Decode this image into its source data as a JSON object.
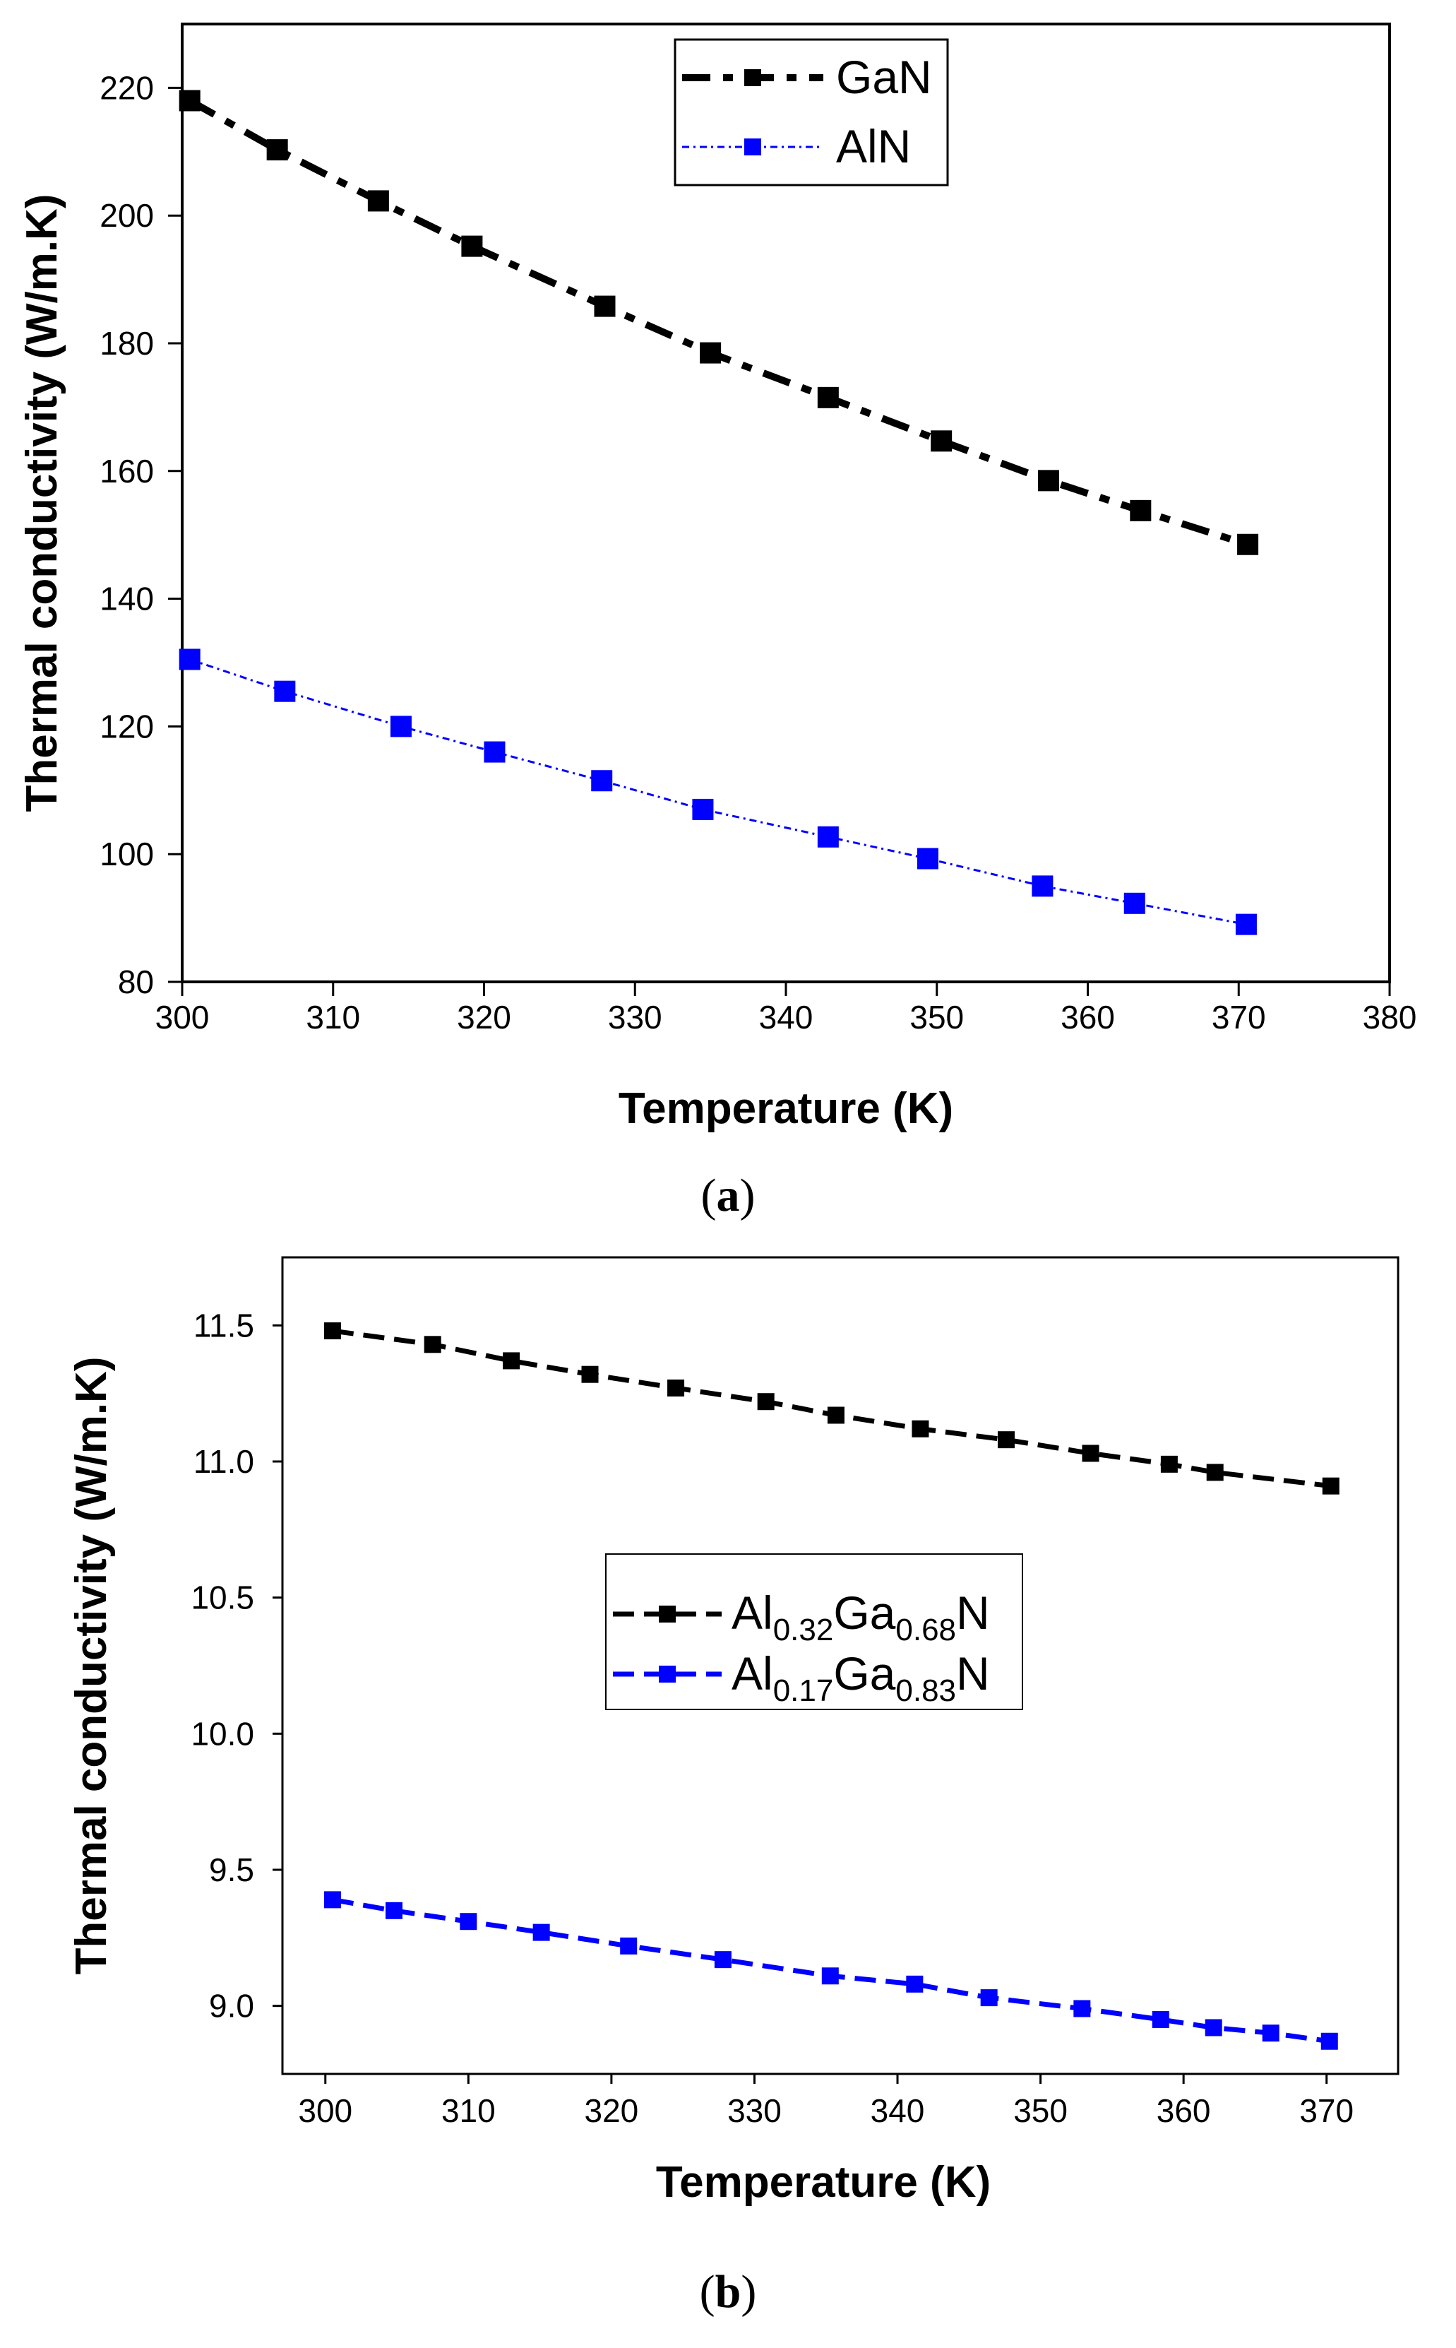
{
  "chart_data": [
    {
      "type": "line",
      "panel": "a",
      "caption": "(a)",
      "caption_letter": "a",
      "xlabel": "Temperature (K)",
      "ylabel": "Thermal conductivity (W/m.K)",
      "xlim": [
        300,
        380
      ],
      "ylim": [
        80,
        230
      ],
      "xticks": [
        300,
        310,
        320,
        330,
        340,
        350,
        360,
        370,
        380
      ],
      "yticks": [
        80,
        100,
        120,
        140,
        160,
        180,
        200,
        220
      ],
      "legend_position": "top-center",
      "series": [
        {
          "name": "GaN",
          "color": "#000000",
          "style": "dash-dot",
          "x": [
            300.5,
            306.3,
            313.0,
            319.2,
            328.0,
            335.0,
            342.8,
            350.3,
            357.4,
            363.5,
            370.6
          ],
          "y": [
            218.0,
            210.3,
            202.3,
            195.2,
            185.8,
            178.5,
            171.5,
            164.7,
            158.5,
            153.8,
            148.5
          ]
        },
        {
          "name": "AlN",
          "color": "#0000ff",
          "style": "dotted",
          "x": [
            300.5,
            306.8,
            314.5,
            320.7,
            327.8,
            334.5,
            342.8,
            349.4,
            357.0,
            363.1,
            370.5
          ],
          "y": [
            130.5,
            125.5,
            120.0,
            116.0,
            111.5,
            107.0,
            102.7,
            99.3,
            95.0,
            92.3,
            89.0
          ]
        }
      ]
    },
    {
      "type": "line",
      "panel": "b",
      "caption": "(b)",
      "caption_letter": "b",
      "xlabel": "Temperature (K)",
      "ylabel": "Thermal conductivity (W/m.K)",
      "xlim": [
        297,
        375
      ],
      "ylim": [
        8.75,
        11.75
      ],
      "xticks": [
        300,
        310,
        320,
        330,
        340,
        350,
        360,
        370
      ],
      "yticks": [
        9.0,
        9.5,
        10.0,
        10.5,
        11.0,
        11.5
      ],
      "ytick_labels": [
        "9.0",
        "9.5",
        "10.0",
        "10.5",
        "11.0",
        "11.5"
      ],
      "legend_position": "center",
      "series": [
        {
          "name": "Al0.32Ga0.68N",
          "label_parts": [
            "Al",
            "0.32",
            "Ga",
            "0.68",
            "N"
          ],
          "color": "#000000",
          "style": "dashed",
          "x": [
            300.5,
            307.5,
            313.0,
            318.5,
            324.5,
            330.8,
            335.7,
            341.6,
            347.6,
            353.5,
            359.0,
            362.2,
            370.3
          ],
          "y": [
            11.48,
            11.43,
            11.37,
            11.32,
            11.27,
            11.22,
            11.17,
            11.12,
            11.08,
            11.03,
            10.99,
            10.96,
            10.91
          ]
        },
        {
          "name": "Al0.17Ga0.83N",
          "label_parts": [
            "Al",
            "0.17",
            "Ga",
            "0.83",
            "N"
          ],
          "color": "#0000ff",
          "style": "dashed",
          "x": [
            300.5,
            304.8,
            310.0,
            315.1,
            321.2,
            327.8,
            335.3,
            341.2,
            346.4,
            352.9,
            358.4,
            362.1,
            366.1,
            370.2
          ],
          "y": [
            9.39,
            9.35,
            9.31,
            9.27,
            9.22,
            9.17,
            9.11,
            9.08,
            9.03,
            8.99,
            8.95,
            8.92,
            8.9,
            8.87
          ]
        }
      ]
    }
  ]
}
